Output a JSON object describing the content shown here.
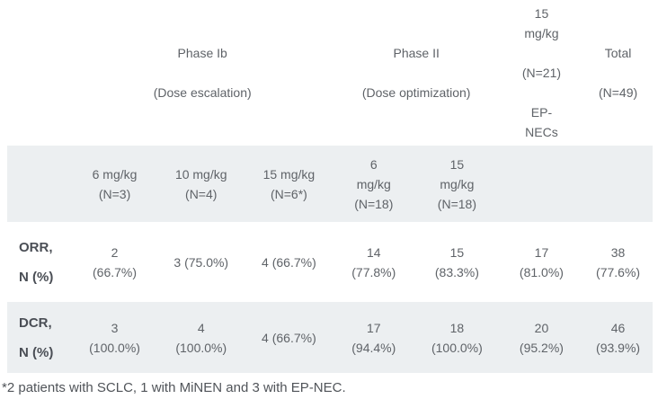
{
  "colors": {
    "page_background": "#ffffff",
    "band_background": "#eceff1",
    "body_text": "#5f6368",
    "row_label_text": "#4a4e55",
    "footnote_text": "#505459"
  },
  "table": {
    "phase_headers": {
      "corner": "",
      "phase_ib": "Phase Ib\n\n(Dose escalation)",
      "phase_ii": "Phase II\n\n(Dose optimization)",
      "ep_necs_cohort": "15\nmg/kg\n\n(N=21)\n\nEP-\nNECs",
      "total": "Total\n\n(N=49)"
    },
    "dose_headers": [
      "",
      "6 mg/kg\n(N=3)",
      "10 mg/kg\n(N=4)",
      "15 mg/kg\n(N=6*)",
      "6\nmg/kg\n(N=18)",
      "15\nmg/kg\n(N=18)",
      "",
      ""
    ],
    "rows": [
      {
        "label": "ORR,\nN (%)",
        "values": [
          "2\n(66.7%)",
          "3 (75.0%)",
          "4 (66.7%)",
          "14\n(77.8%)",
          "15\n(83.3%)",
          "17\n(81.0%)",
          "38\n(77.6%)"
        ]
      },
      {
        "label": "DCR,\nN (%)",
        "values": [
          "3\n(100.0%)",
          "4\n(100.0%)",
          "4 (66.7%)",
          "17\n(94.4%)",
          "18\n(100.0%)",
          "20\n(95.2%)",
          "46\n(93.9%)"
        ]
      }
    ],
    "footnote": "*2 patients with SCLC, 1 with MiNEN and 3 with EP-NEC."
  },
  "chart_data": {
    "type": "table",
    "group_headers": [
      {
        "label": "Phase Ib (Dose escalation)",
        "span": 3
      },
      {
        "label": "Phase II (Dose optimization)",
        "span": 2
      },
      {
        "label": "15 mg/kg (N=21) EP-NECs",
        "span": 1
      },
      {
        "label": "Total (N=49)",
        "span": 1
      }
    ],
    "column_headers": [
      "6 mg/kg (N=3)",
      "10 mg/kg (N=4)",
      "15 mg/kg (N=6*)",
      "6 mg/kg (N=18)",
      "15 mg/kg (N=18)",
      "15 mg/kg (N=21) EP-NECs",
      "Total (N=49)"
    ],
    "rows": [
      {
        "label": "ORR, N (%)",
        "values": [
          "2 (66.7%)",
          "3 (75.0%)",
          "4 (66.7%)",
          "14 (77.8%)",
          "15 (83.3%)",
          "17 (81.0%)",
          "38 (77.6%)"
        ]
      },
      {
        "label": "DCR, N (%)",
        "values": [
          "3 (100.0%)",
          "4 (100.0%)",
          "4 (66.7%)",
          "17 (94.4%)",
          "18 (100.0%)",
          "20 (95.2%)",
          "46 (93.9%)"
        ]
      }
    ],
    "footnote": "*2 patients with SCLC, 1 with MiNEN and 3 with EP-NEC."
  }
}
